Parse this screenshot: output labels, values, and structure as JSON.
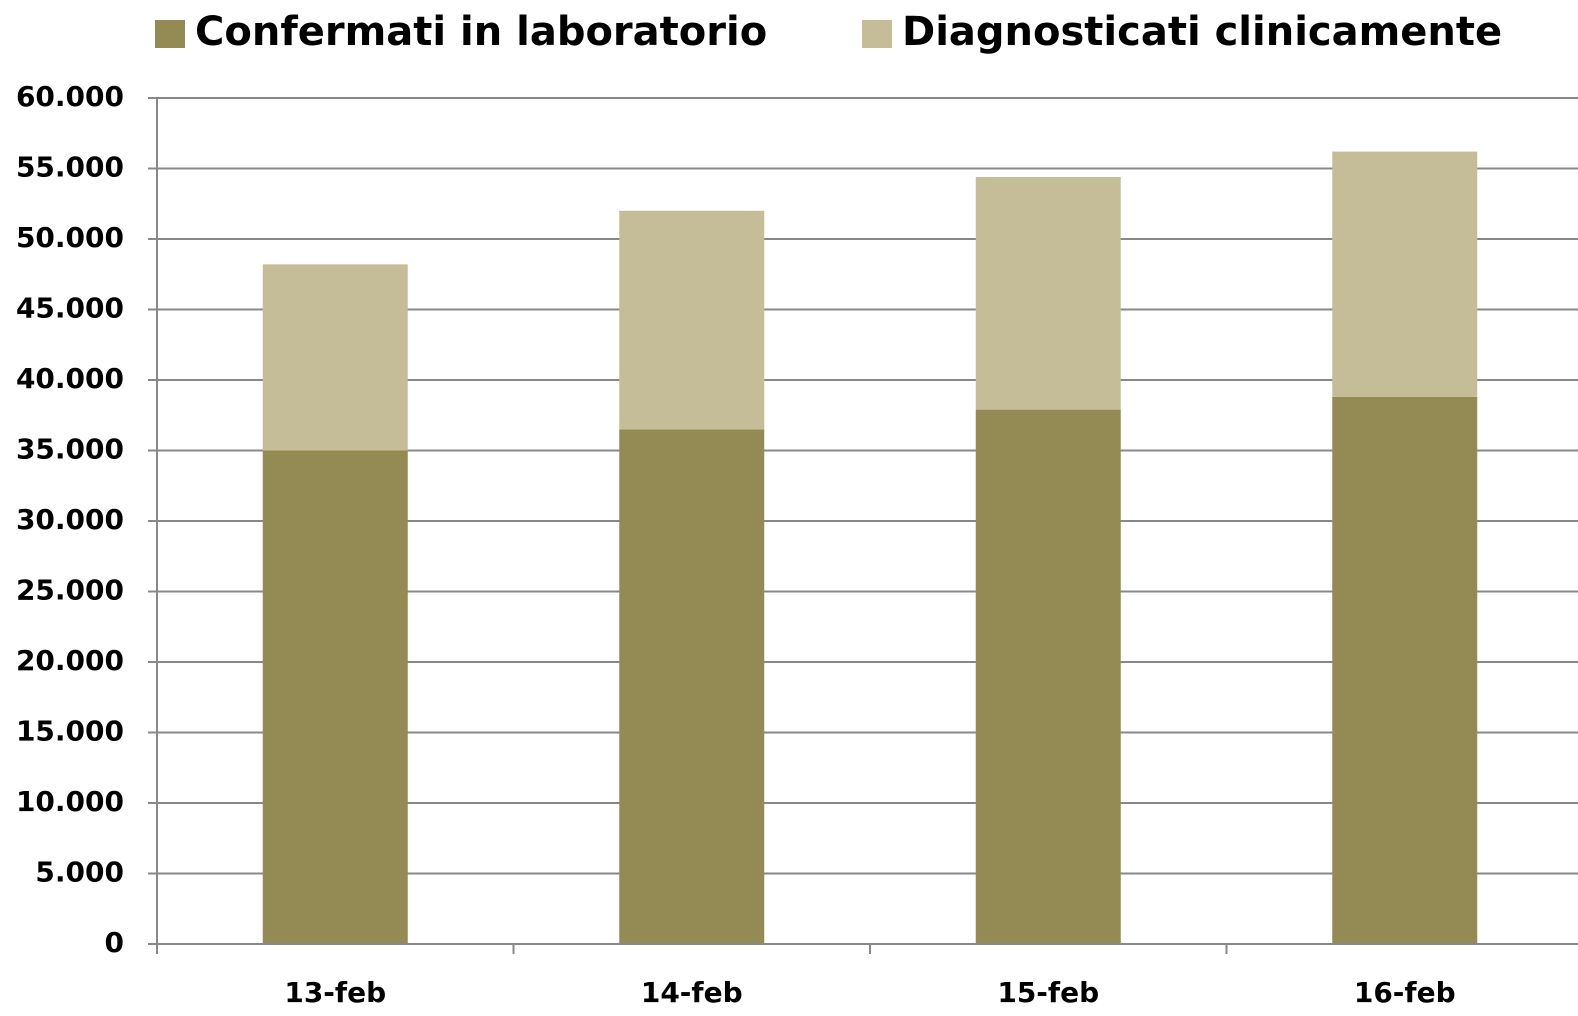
{
  "chart_data": {
    "type": "stacked_bar",
    "categories": [
      "13-feb",
      "14-feb",
      "15-feb",
      "16-feb"
    ],
    "series": [
      {
        "name": "Confermati in laboratorio",
        "color": "#948a54",
        "values": [
          35000,
          36500,
          37900,
          38800
        ]
      },
      {
        "name": "Diagnosticati clinicamente",
        "color": "#c4bd97",
        "values": [
          13200,
          15500,
          16500,
          17400
        ]
      }
    ],
    "ylim": [
      0,
      60000
    ],
    "yticks": [
      0,
      {
        "value": 5000,
        "label": "5.000"
      },
      {
        "value": 10000,
        "label": "10.000"
      },
      {
        "value": 15000,
        "label": "15.000"
      },
      {
        "value": 20000,
        "label": "20.000"
      },
      {
        "value": 25000,
        "label": "25.000"
      },
      {
        "value": 30000,
        "label": "30.000"
      },
      {
        "value": 35000,
        "label": "35.000"
      },
      {
        "value": 40000,
        "label": "40.000"
      },
      {
        "value": 45000,
        "label": "45.000"
      },
      {
        "value": 50000,
        "label": "50.000"
      },
      {
        "value": 55000,
        "label": "55.000"
      },
      {
        "value": 60000,
        "label": "60.000"
      }
    ],
    "grid": true,
    "legend": "top"
  }
}
